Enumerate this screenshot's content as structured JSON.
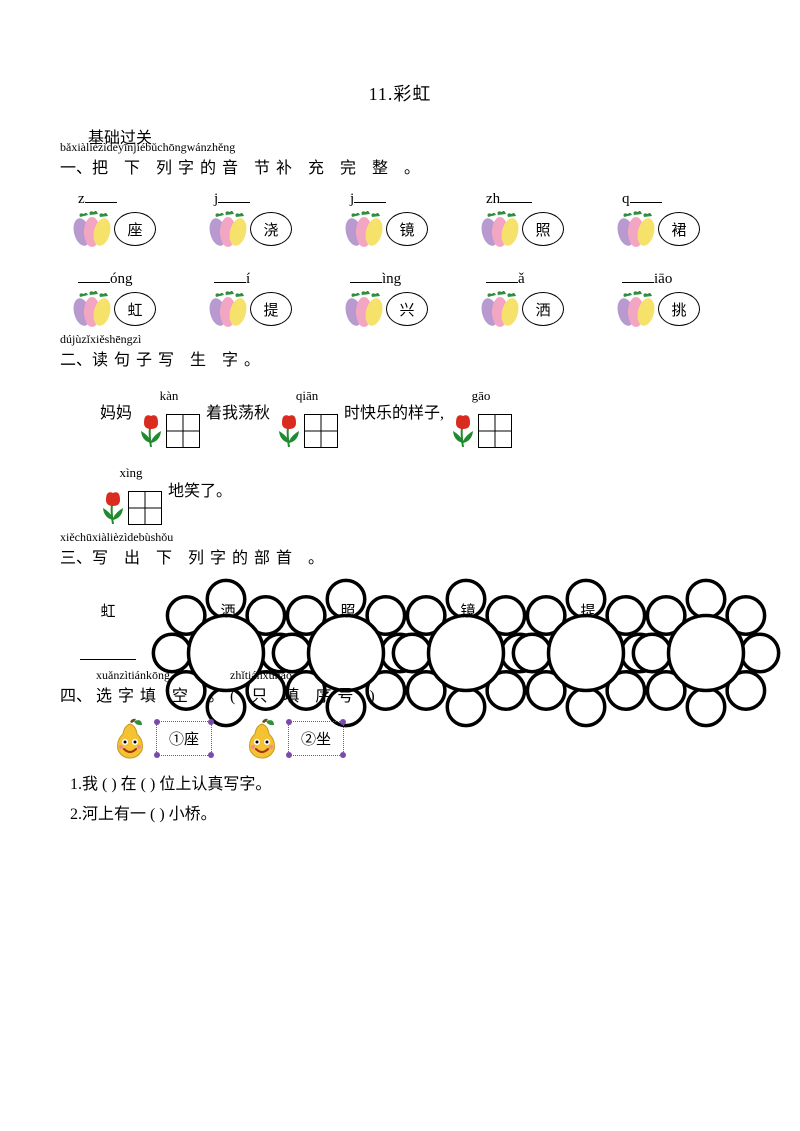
{
  "title": "11.彩虹",
  "basic_subtitle": "基础过关",
  "q1": {
    "pinyin": "bǎxiàlièzìdeyīnjiébǔchōngwánzhěng",
    "heading_prefix": "一、",
    "heading_chars": "把 下 列字的音 节补 充  完  整 。",
    "row1": [
      {
        "prefix": "z",
        "blank_after": true,
        "char": "座"
      },
      {
        "prefix": "j",
        "blank_after": true,
        "char": "浇"
      },
      {
        "prefix": "j",
        "blank_after": true,
        "char": "镜"
      },
      {
        "prefix": "zh",
        "blank_after": true,
        "char": "照"
      },
      {
        "prefix": "q",
        "blank_after": true,
        "char": "裙"
      }
    ],
    "row2": [
      {
        "prefix": "",
        "suffix": "óng",
        "char": "虹"
      },
      {
        "prefix": "",
        "suffix": "í",
        "char": "提"
      },
      {
        "prefix": "",
        "suffix": "ìng",
        "char": "兴"
      },
      {
        "prefix": "",
        "suffix": "ǎ",
        "char": "洒"
      },
      {
        "prefix": "",
        "suffix": "iāo",
        "char": "挑"
      }
    ]
  },
  "q2": {
    "pinyin": "dújùzǐxiěshēngzì",
    "heading_prefix": "二、",
    "heading_chars": "读句子写  生 字。",
    "seg_mama": "妈妈",
    "slot1_pin": "kàn",
    "seg_zhe": "着我荡秋",
    "slot2_pin": "qiān",
    "seg_shi": "时快乐的样子,",
    "slot3_pin": "gāo",
    "slot4_pin": "xìng",
    "seg_last": "地笑了。"
  },
  "q3": {
    "pinyin": "xiěchūxiàlièzìdebùshǒu",
    "heading_prefix": "三、",
    "heading_chars": "写 出 下 列字的部首 。",
    "chars": [
      "虹",
      "洒",
      "照",
      "镜",
      "提"
    ]
  },
  "q4": {
    "pinyin_a": "xuǎnzìtiánkōng",
    "pinyin_b": "zhǐtiánxùhào",
    "heading_prefix": "四、",
    "heading_a": "选字填 空",
    "heading_b": "。( 只 填 序号 )",
    "options": [
      {
        "label": "①座"
      },
      {
        "label": "②坐"
      }
    ],
    "line1": "1.我 (    ) 在 (    ) 位上认真写字。",
    "line2": "2.河上有一 (    ) 小桥。"
  },
  "colors": {
    "veg_purple": "#b89ad1",
    "veg_pink": "#f3a6c3",
    "veg_yellow": "#f6e16a",
    "veg_leaf": "#2f8f3f",
    "tulip_red": "#d92b1f",
    "tulip_leaf": "#1f8a2e",
    "pear_body": "#f4c233",
    "pear_leaf": "#2f8f3f",
    "border_purple": "#7a4aa8"
  }
}
